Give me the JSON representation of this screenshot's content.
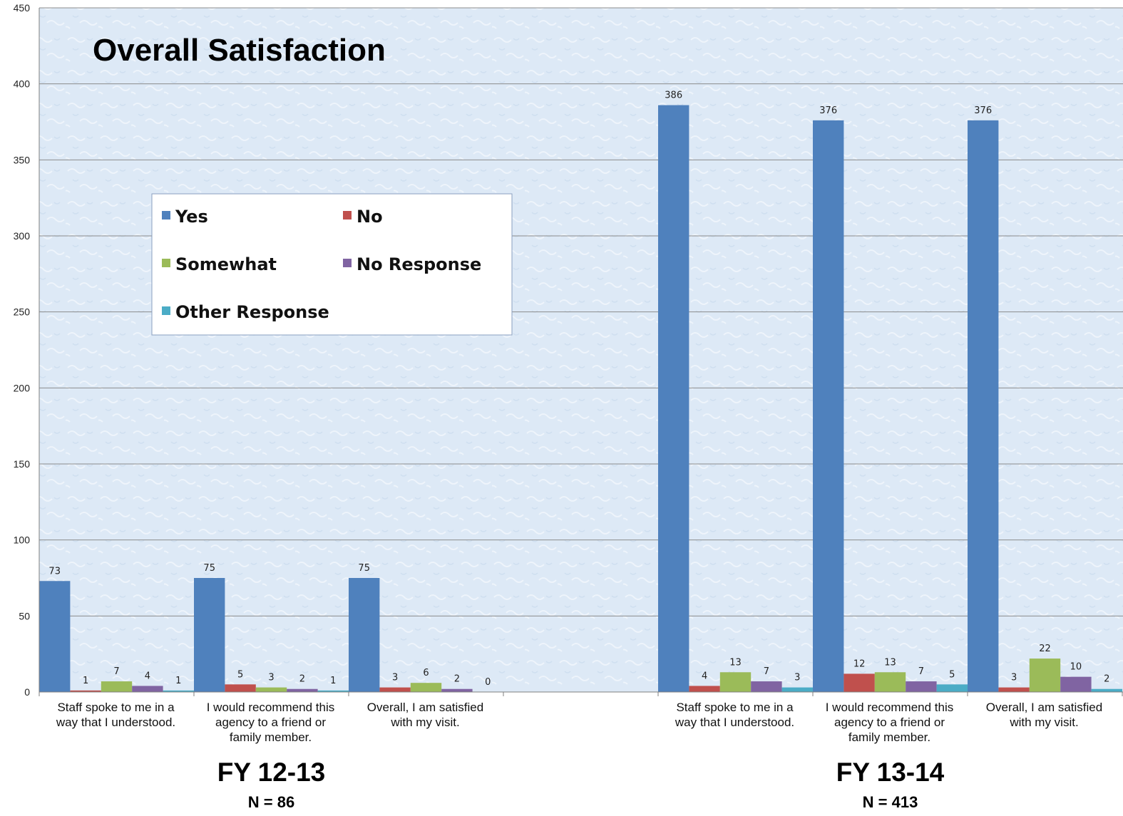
{
  "chart_data": {
    "type": "bar",
    "title": "Overall Satisfaction",
    "ylim": [
      0,
      450
    ],
    "y_ticks": [
      0,
      50,
      100,
      150,
      200,
      250,
      300,
      350,
      400,
      450
    ],
    "grid": true,
    "legend_position": "upper-left inside plot",
    "series": [
      {
        "name": "Yes",
        "color": "#4F81BD"
      },
      {
        "name": "No",
        "color": "#C0504D"
      },
      {
        "name": "Somewhat",
        "color": "#9BBB59"
      },
      {
        "name": "No Response",
        "color": "#8064A2"
      },
      {
        "name": "Other Response",
        "color": "#4BACC6"
      }
    ],
    "groups": [
      {
        "label": "FY 12-13",
        "n_label": "N = 86",
        "categories": [
          {
            "lines": [
              "Staff spoke to me in a",
              "way that I understood."
            ],
            "values": [
              73,
              1,
              7,
              4,
              1
            ]
          },
          {
            "lines": [
              "I would recommend this",
              "agency to a friend or",
              "family member."
            ],
            "values": [
              75,
              5,
              3,
              2,
              1
            ]
          },
          {
            "lines": [
              "Overall, I am satisfied",
              "with my visit."
            ],
            "values": [
              75,
              3,
              6,
              2,
              0
            ]
          }
        ]
      },
      {
        "label": "FY 13-14",
        "n_label": "N = 413",
        "categories": [
          {
            "lines": [
              "Staff spoke to me in a",
              "way that I understood."
            ],
            "values": [
              386,
              4,
              13,
              7,
              3
            ]
          },
          {
            "lines": [
              "I would recommend this",
              "agency to a friend or",
              "family member."
            ],
            "values": [
              376,
              12,
              13,
              7,
              5
            ]
          },
          {
            "lines": [
              "Overall, I am satisfied",
              "with my visit."
            ],
            "values": [
              376,
              3,
              22,
              10,
              2
            ]
          }
        ]
      }
    ]
  }
}
